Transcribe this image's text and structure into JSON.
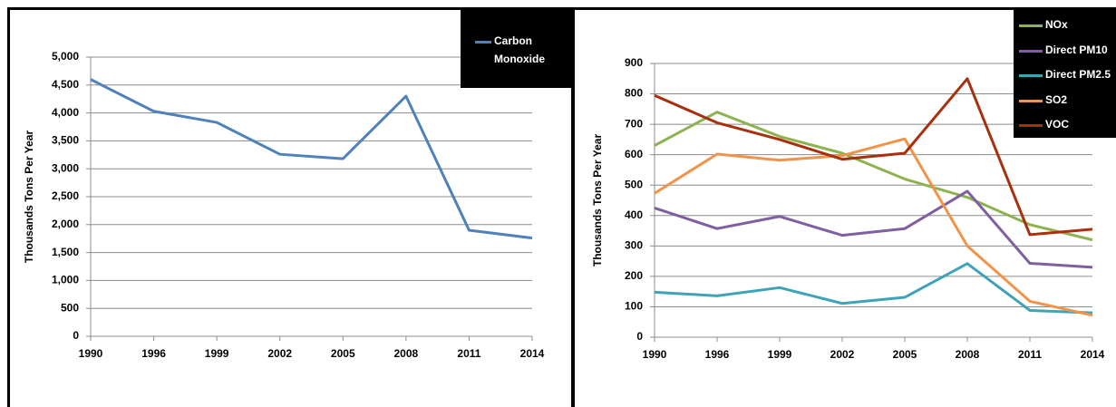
{
  "chart_data": [
    {
      "type": "line",
      "y_label": "Thousands Tons Per Year",
      "categories": [
        "1990",
        "1996",
        "1999",
        "2002",
        "2005",
        "2008",
        "2011",
        "2014"
      ],
      "series": [
        {
          "name": "Carbon Monoxide",
          "color": "#4f81bd",
          "values": [
            4600,
            4030,
            3830,
            3260,
            3180,
            4300,
            1900,
            1760
          ]
        }
      ],
      "ylim": [
        0,
        5000
      ],
      "yticks": [
        0,
        500,
        {
          "value": 1000,
          "label": "1,000"
        },
        {
          "value": 1500,
          "label": "1,500"
        },
        {
          "value": 2000,
          "label": "2,000"
        },
        {
          "value": 2500,
          "label": "2,500"
        },
        {
          "value": 3000,
          "label": "3,000"
        },
        {
          "value": 3500,
          "label": "3,500"
        },
        {
          "value": 4000,
          "label": "4,000"
        },
        {
          "value": 4500,
          "label": "4,500"
        },
        {
          "value": 5000,
          "label": "5,000"
        }
      ],
      "grid": true,
      "legend": "top-right"
    },
    {
      "type": "line",
      "y_label": "Thousands Tons Per Year",
      "categories": [
        "1990",
        "1996",
        "1999",
        "2002",
        "2005",
        "2008",
        "2011",
        "2014"
      ],
      "series": [
        {
          "name": "NOx",
          "color": "#8db351",
          "values": [
            630,
            740,
            660,
            605,
            520,
            460,
            370,
            320
          ]
        },
        {
          "name": "Direct PM10",
          "color": "#7f5fa0",
          "values": [
            425,
            357,
            397,
            335,
            357,
            480,
            243,
            230
          ]
        },
        {
          "name": "Direct PM2.5",
          "color": "#3fa3b8",
          "values": [
            148,
            136,
            163,
            111,
            131,
            242,
            88,
            80
          ]
        },
        {
          "name": "SO2",
          "color": "#f2934a",
          "values": [
            473,
            602,
            582,
            597,
            652,
            300,
            118,
            72
          ]
        },
        {
          "name": "VOC",
          "color": "#a8300f",
          "values": [
            795,
            705,
            650,
            585,
            605,
            850,
            337,
            355
          ]
        }
      ],
      "ylim": [
        0,
        900
      ],
      "yticks": [
        0,
        100,
        200,
        300,
        400,
        500,
        600,
        700,
        800,
        900
      ],
      "grid": true,
      "legend": "top-right"
    }
  ]
}
